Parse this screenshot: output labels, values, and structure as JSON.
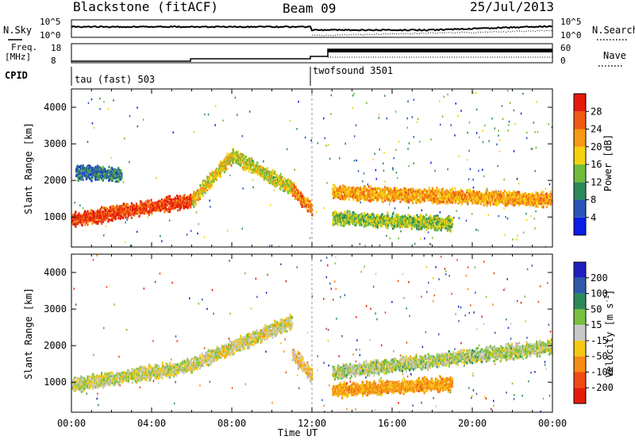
{
  "header": {
    "title": "Blackstone (fitACF)",
    "beam": "Beam 09",
    "date": "25/Jul/2013"
  },
  "nsky_panel": {
    "left_label": "N.Sky",
    "left_ticks": [
      "10^5",
      "10^0"
    ],
    "right_ticks": [
      "10^5",
      "10^0"
    ],
    "right_label": "N.Search"
  },
  "freq_panel": {
    "label_line1": "Freq.",
    "label_line2": "[MHz]",
    "left_ticks": [
      "18",
      "8"
    ],
    "right_ticks": [
      "60",
      "0"
    ],
    "right_label": "Nave"
  },
  "cpid_panel": {
    "label": "CPID",
    "mode1": "tau (fast) 503",
    "mode2": "twofsound 3501"
  },
  "x_axis": {
    "ticks": [
      "00:00",
      "04:00",
      "08:00",
      "12:00",
      "16:00",
      "20:00",
      "00:00"
    ],
    "title": "Time UT"
  },
  "y_axis": {
    "title": "Slant Range [km]",
    "ticks": [
      "1000",
      "2000",
      "3000",
      "4000"
    ]
  },
  "power_scale": {
    "label": "Power [dB]",
    "ticks": [
      "4",
      "8",
      "12",
      "16",
      "20",
      "24",
      "28"
    ],
    "colors": [
      "#0a1ee6",
      "#2a55b8",
      "#2c8a5a",
      "#6fbb3c",
      "#f5d20f",
      "#f59a12",
      "#f05a14",
      "#e61a0a"
    ]
  },
  "velocity_scale": {
    "label_prefix": "Velocity [m s",
    "label_sup": "-1",
    "label_suffix": "]",
    "ticks": [
      "200",
      "100",
      "50",
      "15",
      "-15",
      "-50",
      "-100",
      "-200"
    ],
    "colors": [
      "#2020c0",
      "#2e5aa8",
      "#2c8a5a",
      "#78c040",
      "#c8c8c8",
      "#f5c814",
      "#f58c14",
      "#f04a14",
      "#e61a0a"
    ]
  },
  "chart_data": [
    {
      "type": "heatmap",
      "name": "Power",
      "x_range_hours": [
        0,
        24
      ],
      "y_range_km": [
        180,
        4500
      ],
      "colorbar_range_db": [
        0,
        30
      ],
      "echo_bands": [
        {
          "t_start": 0.0,
          "t_end": 6.0,
          "range_start": 950,
          "range_end": 1480,
          "power_db": 26
        },
        {
          "t_start": 6.0,
          "t_end": 8.0,
          "range_start": 1480,
          "range_end": 2700,
          "power_db": 18
        },
        {
          "t_start": 8.0,
          "t_end": 11.0,
          "range_start": 2700,
          "range_end": 1800,
          "power_db": 16
        },
        {
          "t_start": 11.0,
          "t_end": 12.0,
          "range_start": 1800,
          "range_end": 1200,
          "power_db": 22
        },
        {
          "t_start": 13.0,
          "t_end": 24.0,
          "range_start": 1700,
          "range_end": 1500,
          "power_db": 20
        },
        {
          "t_start": 13.0,
          "t_end": 19.0,
          "range_start": 1000,
          "range_end": 850,
          "power_db": 14
        },
        {
          "t_start": 0.2,
          "t_end": 2.5,
          "range_start": 2250,
          "range_end": 2200,
          "power_db": 8
        }
      ]
    },
    {
      "type": "heatmap",
      "name": "Velocity",
      "x_range_hours": [
        0,
        24
      ],
      "y_range_km": [
        180,
        4500
      ],
      "colorbar_range_ms": [
        -250,
        250
      ],
      "echo_bands": [
        {
          "t_start": 0.0,
          "t_end": 6.0,
          "range_start": 950,
          "range_end": 1480,
          "velocity_ms": 0
        },
        {
          "t_start": 6.0,
          "t_end": 11.0,
          "range_start": 1500,
          "range_end": 2700,
          "velocity_ms": -10
        },
        {
          "t_start": 11.0,
          "t_end": 12.0,
          "range_start": 1800,
          "range_end": 1200,
          "velocity_ms": -30
        },
        {
          "t_start": 13.0,
          "t_end": 24.0,
          "range_start": 1300,
          "range_end": 2000,
          "velocity_ms": 10
        },
        {
          "t_start": 13.0,
          "t_end": 19.0,
          "range_start": 800,
          "range_end": 1000,
          "velocity_ms": -60
        }
      ]
    }
  ]
}
